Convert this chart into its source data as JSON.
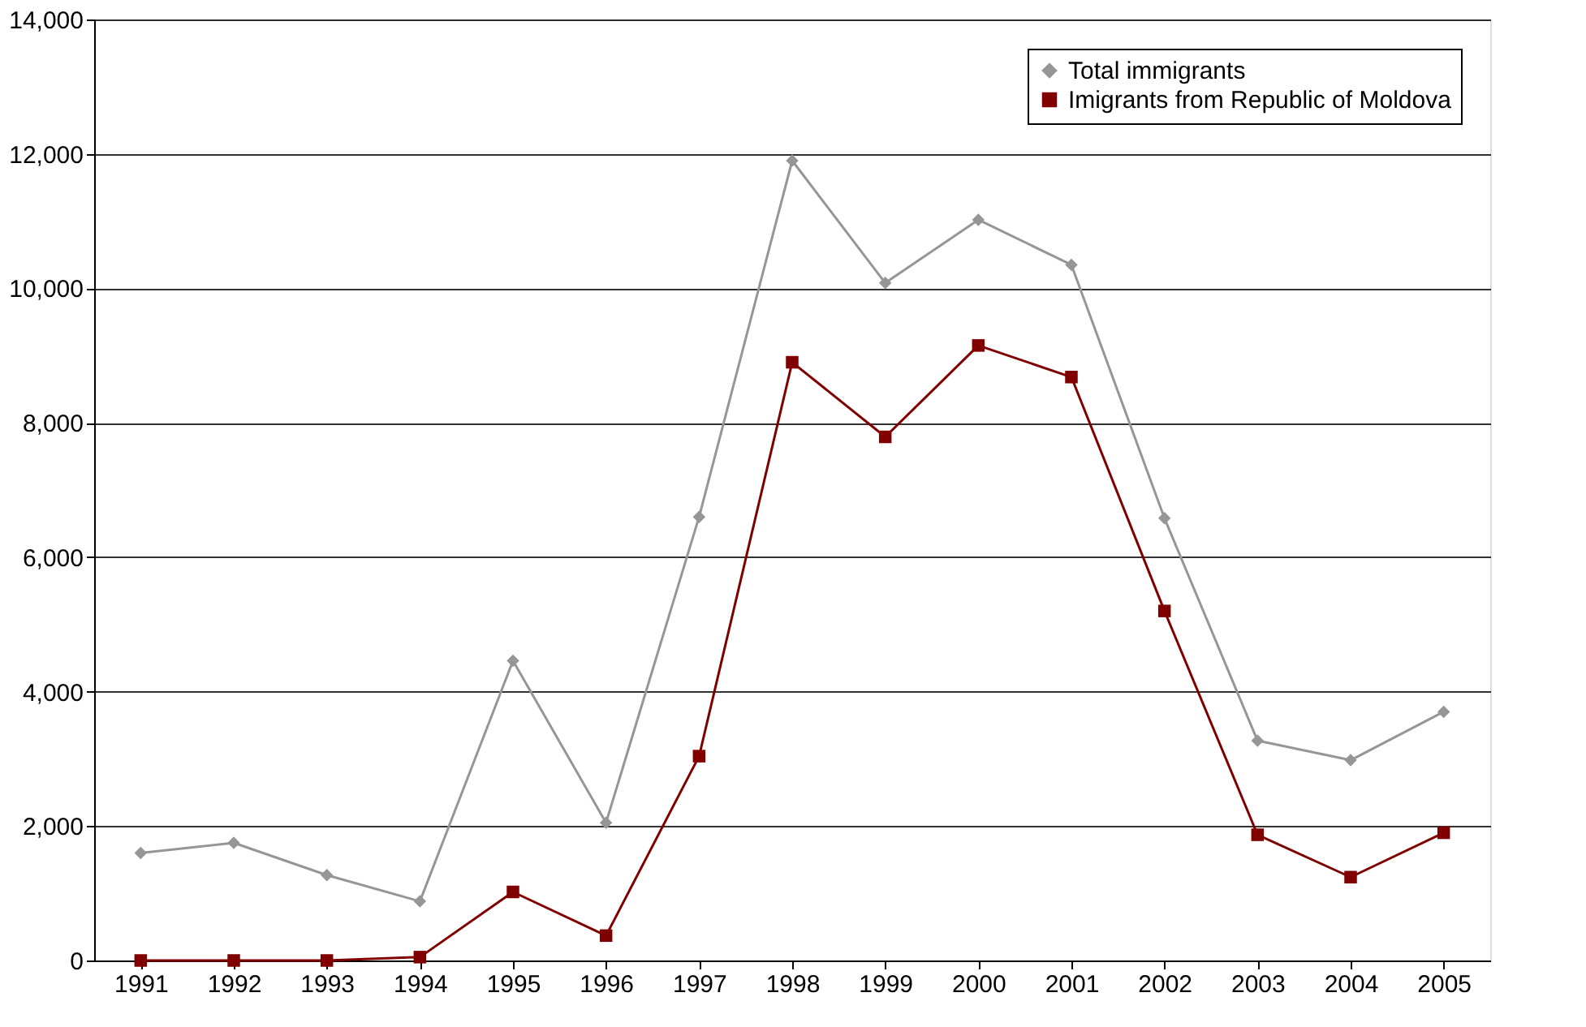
{
  "chart_data": {
    "type": "line",
    "categories": [
      "1991",
      "1992",
      "1993",
      "1994",
      "1995",
      "1996",
      "1997",
      "1998",
      "1999",
      "2000",
      "2001",
      "2002",
      "2003",
      "2004",
      "2005"
    ],
    "series": [
      {
        "name": "Total immigrants",
        "color": "#969696",
        "marker": "diamond",
        "values": [
          1600,
          1750,
          1270,
          880,
          4460,
          2050,
          6600,
          11900,
          10080,
          11020,
          10350,
          6580,
          3270,
          2980,
          3700
        ]
      },
      {
        "name": "Imigrants from Republic of Moldova",
        "color": "#800000",
        "marker": "square",
        "values": [
          0,
          0,
          0,
          50,
          1020,
          370,
          3040,
          8900,
          7790,
          9150,
          8680,
          5200,
          1870,
          1240,
          1900
        ]
      }
    ],
    "ylim": [
      0,
      14000
    ],
    "yticks": [
      0,
      {
        "value": 2000,
        "label": "2,000"
      },
      {
        "value": 4000,
        "label": "4,000"
      },
      {
        "value": 6000,
        "label": "6,000"
      },
      {
        "value": 8000,
        "label": "8,000"
      },
      {
        "value": 10000,
        "label": "10,000"
      },
      {
        "value": 12000,
        "label": "12,000"
      },
      {
        "value": 14000,
        "label": "14,000"
      }
    ],
    "grid": "y",
    "legend": "top right",
    "line_style": "solid"
  }
}
